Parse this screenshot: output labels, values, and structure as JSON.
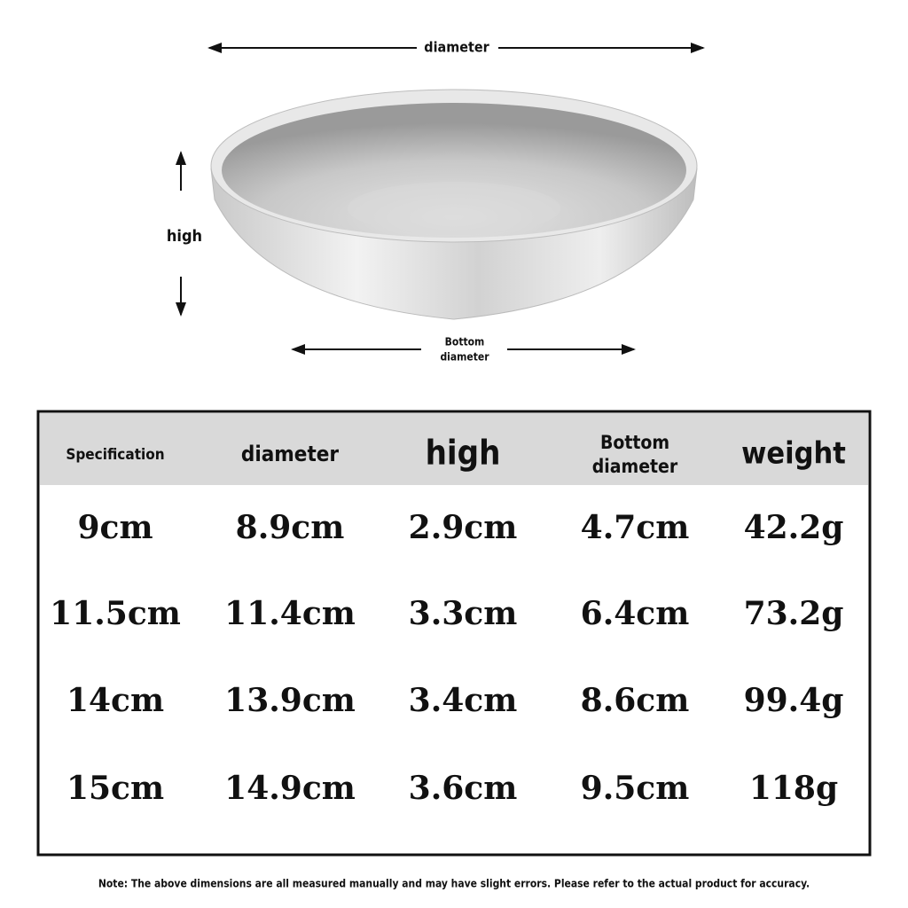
{
  "diagram": {
    "diameter": "diameter",
    "high": "high",
    "bottom_diameter": [
      "Bottom",
      "diameter"
    ]
  },
  "table": {
    "header": [
      "Specification",
      "diameter",
      "high",
      [
        "Bottom",
        "diameter"
      ],
      "weight"
    ],
    "rows": [
      [
        "9cm",
        "8.9cm",
        "2.9cm",
        "4.7cm",
        "42.2g"
      ],
      [
        "11.5cm",
        "11.4cm",
        "3.3cm",
        "6.4cm",
        "73.2g"
      ],
      [
        "14cm",
        "13.9cm",
        "3.4cm",
        "8.6cm",
        "99.4g"
      ],
      [
        "15cm",
        "14.9cm",
        "3.6cm",
        "9.5cm",
        "118g"
      ]
    ]
  },
  "note": "Note: The above dimensions are all measured manually and may have slight errors. Please refer to the actual product for accuracy."
}
